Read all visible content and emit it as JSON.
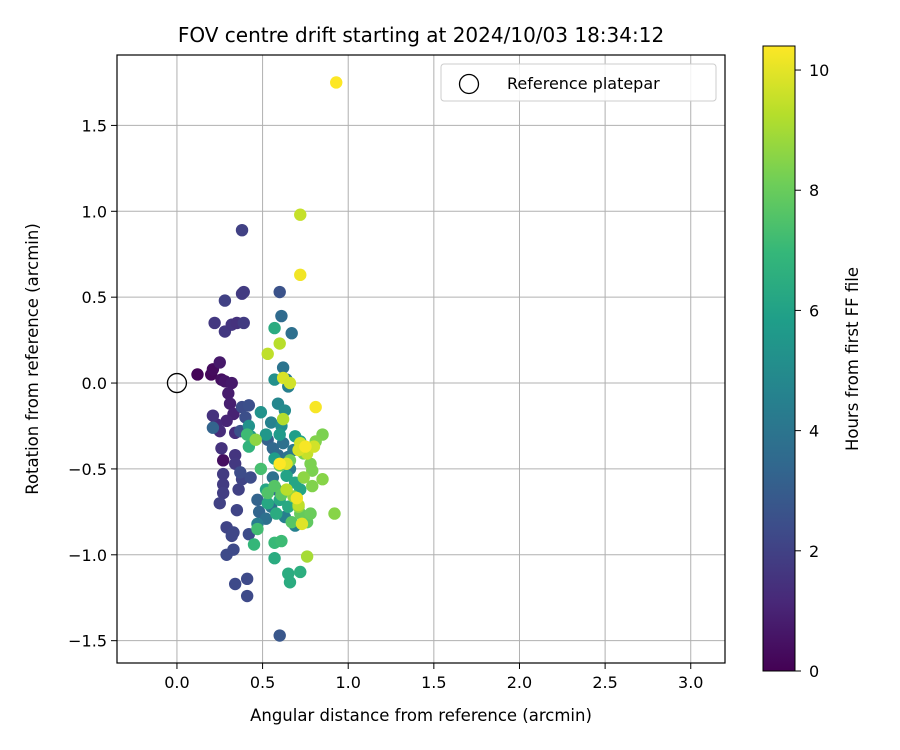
{
  "chart_data": {
    "type": "scatter",
    "title": "FOV centre drift starting at 2024/10/03 18:34:12",
    "xlabel": "Angular distance from reference (arcmin)",
    "ylabel": "Rotation from reference (arcmin)",
    "xlim": [
      -0.35,
      3.2
    ],
    "ylim": [
      -1.63,
      1.91
    ],
    "xticks": [
      0.0,
      0.5,
      1.0,
      1.5,
      2.0,
      2.5,
      3.0
    ],
    "xtick_labels": [
      "0.0",
      "0.5",
      "1.0",
      "1.5",
      "2.0",
      "2.5",
      "3.0"
    ],
    "yticks": [
      -1.5,
      -1.0,
      -0.5,
      0.0,
      0.5,
      1.0,
      1.5
    ],
    "ytick_labels": [
      "−1.5",
      "−1.0",
      "−0.5",
      "0.0",
      "0.5",
      "1.0",
      "1.5"
    ],
    "grid": true,
    "legend": {
      "placement": "top-right",
      "entries": [
        "Reference platepar"
      ]
    },
    "reference_point": {
      "x": 0.0,
      "y": 0.0,
      "label": "Reference platepar"
    },
    "colorbar": {
      "label": "Hours from first FF file",
      "colormap": "viridis",
      "range": [
        0,
        10.4
      ],
      "ticks": [
        0,
        2,
        4,
        6,
        8,
        10
      ],
      "tick_labels": [
        "0",
        "2",
        "4",
        "6",
        "8",
        "10"
      ],
      "stops": [
        "#440154",
        "#482878",
        "#3e4a89",
        "#31688e",
        "#26828e",
        "#1f9e89",
        "#35b779",
        "#6ece58",
        "#b5de2b",
        "#fde725"
      ]
    },
    "points": [
      {
        "x": 0.12,
        "y": 0.05,
        "h": 0.1
      },
      {
        "x": 0.2,
        "y": 0.05,
        "h": 0.2
      },
      {
        "x": 0.21,
        "y": 0.08,
        "h": 0.3
      },
      {
        "x": 0.26,
        "y": 0.02,
        "h": 0.4
      },
      {
        "x": 0.27,
        "y": -0.45,
        "h": 0.4
      },
      {
        "x": 0.25,
        "y": 0.12,
        "h": 0.7
      },
      {
        "x": 0.28,
        "y": 0.01,
        "h": 0.6
      },
      {
        "x": 0.32,
        "y": 0.0,
        "h": 0.7
      },
      {
        "x": 0.3,
        "y": -0.06,
        "h": 0.8
      },
      {
        "x": 0.31,
        "y": -0.12,
        "h": 0.9
      },
      {
        "x": 0.33,
        "y": -0.18,
        "h": 1.0
      },
      {
        "x": 0.29,
        "y": -0.22,
        "h": 1.1
      },
      {
        "x": 0.23,
        "y": -0.24,
        "h": 1.2
      },
      {
        "x": 0.25,
        "y": -0.28,
        "h": 1.3
      },
      {
        "x": 0.34,
        "y": -0.29,
        "h": 1.4
      },
      {
        "x": 0.21,
        "y": -0.19,
        "h": 1.5
      },
      {
        "x": 0.26,
        "y": -0.38,
        "h": 1.5
      },
      {
        "x": 0.34,
        "y": -0.42,
        "h": 1.6
      },
      {
        "x": 0.34,
        "y": -0.47,
        "h": 1.7
      },
      {
        "x": 0.27,
        "y": -0.53,
        "h": 1.8
      },
      {
        "x": 0.27,
        "y": -0.59,
        "h": 1.8
      },
      {
        "x": 0.27,
        "y": -0.64,
        "h": 1.9
      },
      {
        "x": 0.25,
        "y": -0.7,
        "h": 2.0
      },
      {
        "x": 0.36,
        "y": -0.62,
        "h": 2.0
      },
      {
        "x": 0.38,
        "y": -0.56,
        "h": 2.1
      },
      {
        "x": 0.35,
        "y": -0.74,
        "h": 2.1
      },
      {
        "x": 0.29,
        "y": -0.84,
        "h": 2.1
      },
      {
        "x": 0.33,
        "y": -0.87,
        "h": 2.2
      },
      {
        "x": 0.32,
        "y": -0.89,
        "h": 2.2
      },
      {
        "x": 0.29,
        "y": -1.0,
        "h": 2.3
      },
      {
        "x": 0.33,
        "y": -0.97,
        "h": 2.3
      },
      {
        "x": 0.34,
        "y": -1.17,
        "h": 2.3
      },
      {
        "x": 0.41,
        "y": -1.14,
        "h": 2.3
      },
      {
        "x": 0.41,
        "y": -1.24,
        "h": 2.3
      },
      {
        "x": 0.37,
        "y": -0.52,
        "h": 2.4
      },
      {
        "x": 0.43,
        "y": -0.55,
        "h": 2.4
      },
      {
        "x": 0.42,
        "y": -0.88,
        "h": 2.4
      },
      {
        "x": 0.28,
        "y": 0.3,
        "h": 1.7
      },
      {
        "x": 0.32,
        "y": 0.34,
        "h": 1.6
      },
      {
        "x": 0.35,
        "y": 0.35,
        "h": 1.5
      },
      {
        "x": 0.22,
        "y": 0.35,
        "h": 1.7
      },
      {
        "x": 0.39,
        "y": 0.35,
        "h": 1.8
      },
      {
        "x": 0.28,
        "y": 0.48,
        "h": 2.0
      },
      {
        "x": 0.38,
        "y": 0.52,
        "h": 1.8
      },
      {
        "x": 0.39,
        "y": 0.53,
        "h": 1.8
      },
      {
        "x": 0.38,
        "y": 0.89,
        "h": 2.0
      },
      {
        "x": 0.38,
        "y": -0.14,
        "h": 2.4
      },
      {
        "x": 0.42,
        "y": -0.13,
        "h": 2.5
      },
      {
        "x": 0.4,
        "y": -0.2,
        "h": 2.5
      },
      {
        "x": 0.37,
        "y": -0.28,
        "h": 2.6
      },
      {
        "x": 0.6,
        "y": 0.53,
        "h": 2.6
      },
      {
        "x": 0.6,
        "y": -1.47,
        "h": 2.8
      },
      {
        "x": 0.21,
        "y": -0.26,
        "h": 3.3
      },
      {
        "x": 0.61,
        "y": 0.39,
        "h": 3.6
      },
      {
        "x": 0.67,
        "y": 0.29,
        "h": 3.8
      },
      {
        "x": 0.62,
        "y": 0.09,
        "h": 4.0
      },
      {
        "x": 0.64,
        "y": 0.02,
        "h": 4.2
      },
      {
        "x": 0.65,
        "y": -0.02,
        "h": 4.5
      },
      {
        "x": 0.53,
        "y": -0.33,
        "h": 3.2
      },
      {
        "x": 0.56,
        "y": -0.38,
        "h": 3.5
      },
      {
        "x": 0.59,
        "y": -0.42,
        "h": 3.6
      },
      {
        "x": 0.62,
        "y": -0.35,
        "h": 3.8
      },
      {
        "x": 0.65,
        "y": -0.43,
        "h": 4.0
      },
      {
        "x": 0.68,
        "y": -0.39,
        "h": 4.2
      },
      {
        "x": 0.66,
        "y": -0.5,
        "h": 4.3
      },
      {
        "x": 0.56,
        "y": -0.55,
        "h": 3.9
      },
      {
        "x": 0.58,
        "y": -0.62,
        "h": 3.7
      },
      {
        "x": 0.47,
        "y": -0.68,
        "h": 3.3
      },
      {
        "x": 0.48,
        "y": -0.75,
        "h": 3.4
      },
      {
        "x": 0.52,
        "y": -0.79,
        "h": 3.8
      },
      {
        "x": 0.55,
        "y": -0.72,
        "h": 4.0
      },
      {
        "x": 0.63,
        "y": -0.78,
        "h": 4.5
      },
      {
        "x": 0.69,
        "y": -0.83,
        "h": 4.6
      },
      {
        "x": 0.47,
        "y": -0.82,
        "h": 4.4
      },
      {
        "x": 0.59,
        "y": -0.12,
        "h": 4.8
      },
      {
        "x": 0.63,
        "y": -0.16,
        "h": 5.0
      },
      {
        "x": 0.55,
        "y": -0.23,
        "h": 4.6
      },
      {
        "x": 0.61,
        "y": -0.25,
        "h": 5.1
      },
      {
        "x": 0.57,
        "y": 0.02,
        "h": 5.2
      },
      {
        "x": 0.49,
        "y": -0.17,
        "h": 5.3
      },
      {
        "x": 0.42,
        "y": -0.25,
        "h": 5.3
      },
      {
        "x": 0.43,
        "y": -0.31,
        "h": 5.5
      },
      {
        "x": 0.52,
        "y": -0.3,
        "h": 5.5
      },
      {
        "x": 0.6,
        "y": -0.3,
        "h": 5.6
      },
      {
        "x": 0.69,
        "y": -0.31,
        "h": 5.8
      },
      {
        "x": 0.72,
        "y": -0.34,
        "h": 6.0
      },
      {
        "x": 0.57,
        "y": -0.44,
        "h": 5.8
      },
      {
        "x": 0.64,
        "y": -0.54,
        "h": 6.0
      },
      {
        "x": 0.69,
        "y": -0.58,
        "h": 6.1
      },
      {
        "x": 0.72,
        "y": -0.62,
        "h": 6.1
      },
      {
        "x": 0.52,
        "y": -0.62,
        "h": 6.1
      },
      {
        "x": 0.6,
        "y": -0.68,
        "h": 6.2
      },
      {
        "x": 0.53,
        "y": -0.7,
        "h": 6.2
      },
      {
        "x": 0.65,
        "y": -0.72,
        "h": 6.3
      },
      {
        "x": 0.58,
        "y": -0.76,
        "h": 6.4
      },
      {
        "x": 0.57,
        "y": 0.32,
        "h": 6.4
      },
      {
        "x": 0.57,
        "y": -1.02,
        "h": 6.4
      },
      {
        "x": 0.65,
        "y": -1.11,
        "h": 6.4
      },
      {
        "x": 0.66,
        "y": -1.16,
        "h": 6.4
      },
      {
        "x": 0.72,
        "y": -1.1,
        "h": 6.5
      },
      {
        "x": 0.57,
        "y": -0.93,
        "h": 7.0
      },
      {
        "x": 0.61,
        "y": -0.92,
        "h": 7.1
      },
      {
        "x": 0.45,
        "y": -0.94,
        "h": 6.9
      },
      {
        "x": 0.47,
        "y": -0.85,
        "h": 7.2
      },
      {
        "x": 0.42,
        "y": -0.37,
        "h": 6.7
      },
      {
        "x": 0.41,
        "y": -0.3,
        "h": 7.1
      },
      {
        "x": 0.49,
        "y": -0.5,
        "h": 7.3
      },
      {
        "x": 0.53,
        "y": -0.64,
        "h": 7.5
      },
      {
        "x": 0.57,
        "y": -0.6,
        "h": 7.6
      },
      {
        "x": 0.61,
        "y": -0.65,
        "h": 7.7
      },
      {
        "x": 0.67,
        "y": -0.81,
        "h": 7.6
      },
      {
        "x": 0.76,
        "y": -0.81,
        "h": 7.8
      },
      {
        "x": 0.72,
        "y": -0.76,
        "h": 7.9
      },
      {
        "x": 0.78,
        "y": -0.76,
        "h": 8.0
      },
      {
        "x": 0.6,
        "y": -0.48,
        "h": 7.9
      },
      {
        "x": 0.66,
        "y": -0.45,
        "h": 8.1
      },
      {
        "x": 0.74,
        "y": -0.41,
        "h": 8.2
      },
      {
        "x": 0.78,
        "y": -0.47,
        "h": 8.3
      },
      {
        "x": 0.79,
        "y": -0.51,
        "h": 8.3
      },
      {
        "x": 0.85,
        "y": -0.3,
        "h": 8.3
      },
      {
        "x": 0.81,
        "y": -0.34,
        "h": 8.4
      },
      {
        "x": 0.79,
        "y": -0.6,
        "h": 8.4
      },
      {
        "x": 0.85,
        "y": -0.56,
        "h": 8.5
      },
      {
        "x": 0.92,
        "y": -0.76,
        "h": 8.5
      },
      {
        "x": 0.46,
        "y": -0.33,
        "h": 8.6
      },
      {
        "x": 0.74,
        "y": -0.55,
        "h": 8.6
      },
      {
        "x": 0.71,
        "y": -0.72,
        "h": 8.7
      },
      {
        "x": 0.68,
        "y": -0.66,
        "h": 8.7
      },
      {
        "x": 0.76,
        "y": -1.01,
        "h": 9.0
      },
      {
        "x": 0.6,
        "y": 0.23,
        "h": 9.3
      },
      {
        "x": 0.53,
        "y": 0.17,
        "h": 9.4
      },
      {
        "x": 0.62,
        "y": 0.03,
        "h": 9.8
      },
      {
        "x": 0.66,
        "y": 0.0,
        "h": 9.7
      },
      {
        "x": 0.62,
        "y": -0.21,
        "h": 9.2
      },
      {
        "x": 0.64,
        "y": -0.62,
        "h": 9.3
      },
      {
        "x": 0.71,
        "y": -0.71,
        "h": 9.4
      },
      {
        "x": 0.76,
        "y": -0.41,
        "h": 9.5
      },
      {
        "x": 0.72,
        "y": -0.35,
        "h": 9.7
      },
      {
        "x": 0.8,
        "y": -0.37,
        "h": 9.7
      },
      {
        "x": 0.71,
        "y": -0.39,
        "h": 9.8
      },
      {
        "x": 0.64,
        "y": -0.47,
        "h": 9.9
      },
      {
        "x": 0.72,
        "y": 0.98,
        "h": 9.5
      },
      {
        "x": 0.72,
        "y": 0.63,
        "h": 10.2
      },
      {
        "x": 0.93,
        "y": 1.75,
        "h": 10.4
      },
      {
        "x": 0.81,
        "y": -0.14,
        "h": 10.3
      },
      {
        "x": 0.73,
        "y": -0.82,
        "h": 9.9
      },
      {
        "x": 0.7,
        "y": -0.67,
        "h": 10.2
      },
      {
        "x": 0.75,
        "y": -0.37,
        "h": 10.3
      },
      {
        "x": 0.6,
        "y": -0.47,
        "h": 10.4
      }
    ]
  }
}
